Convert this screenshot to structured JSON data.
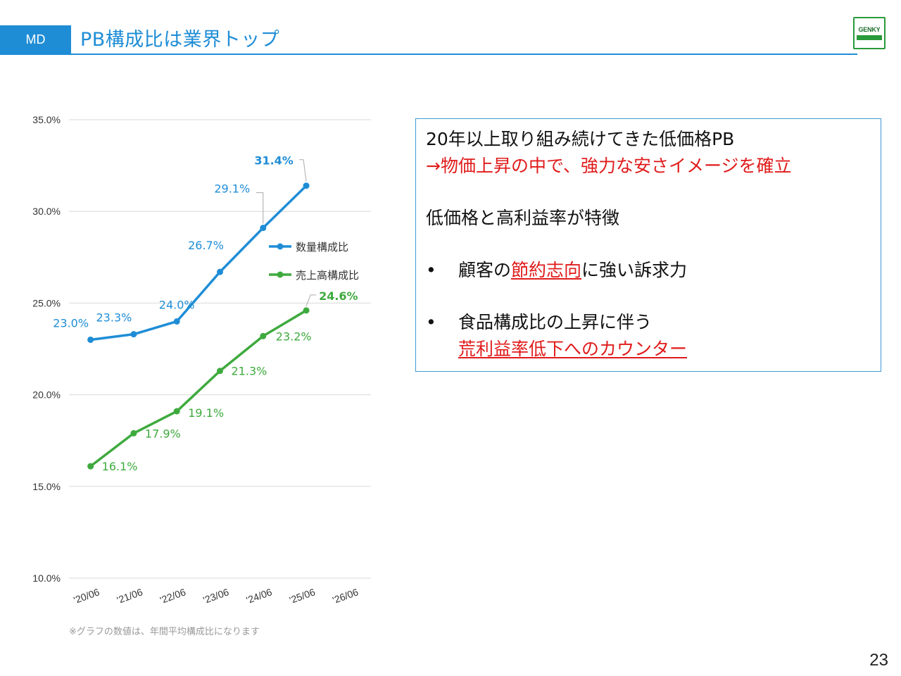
{
  "header": {
    "section": "MD",
    "title": "PB構成比は業界トップ",
    "logo_text": "GENKY"
  },
  "colors": {
    "accent": "#1f8dd6",
    "series_blue": "#1f8dd6",
    "series_green": "#3eaa3e",
    "highlight_red": "#e01b1b"
  },
  "chart_data": {
    "type": "line",
    "title": "",
    "xlabel": "",
    "ylabel": "",
    "categories": [
      "'20/06",
      "'21/06",
      "'22/06",
      "'23/06",
      "'24/06",
      "'25/06",
      "'26/06"
    ],
    "ylim": [
      10.0,
      35.0
    ],
    "yticks": [
      "10.0%",
      "15.0%",
      "20.0%",
      "25.0%",
      "30.0%",
      "35.0%"
    ],
    "ytick_values": [
      10,
      15,
      20,
      25,
      30,
      35
    ],
    "grid": true,
    "legend_position": "right",
    "series": [
      {
        "name": "数量構成比",
        "color": "#1f8dd6",
        "values": [
          23.0,
          23.3,
          24.0,
          26.7,
          29.1,
          31.4,
          null
        ],
        "labels": [
          "23.0%",
          "23.3%",
          "24.0%",
          "26.7%",
          "29.1%",
          "31.4%",
          ""
        ]
      },
      {
        "name": "売上高構成比",
        "color": "#3eaa3e",
        "values": [
          16.1,
          17.9,
          19.1,
          21.3,
          23.2,
          24.6,
          null
        ],
        "labels": [
          "16.1%",
          "17.9%",
          "19.1%",
          "21.3%",
          "23.2%",
          "24.6%",
          ""
        ]
      }
    ],
    "note": "※グラフの数値は、年間平均構成比になります"
  },
  "info": {
    "line1": "20年以上取り組み続けてきた低価格PB",
    "line2": "→物価上昇の中で、強力な安さイメージを確立",
    "line3": "低価格と高利益率が特徴",
    "bullet_mark": "•",
    "bullet1_pre": "顧客の",
    "bullet1_highlight": "節約志向",
    "bullet1_post": "に強い訴求力",
    "bullet2_line1": "食品構成比の上昇に伴う",
    "bullet2_line2": "荒利益率低下へのカウンター"
  },
  "page_number": "23"
}
